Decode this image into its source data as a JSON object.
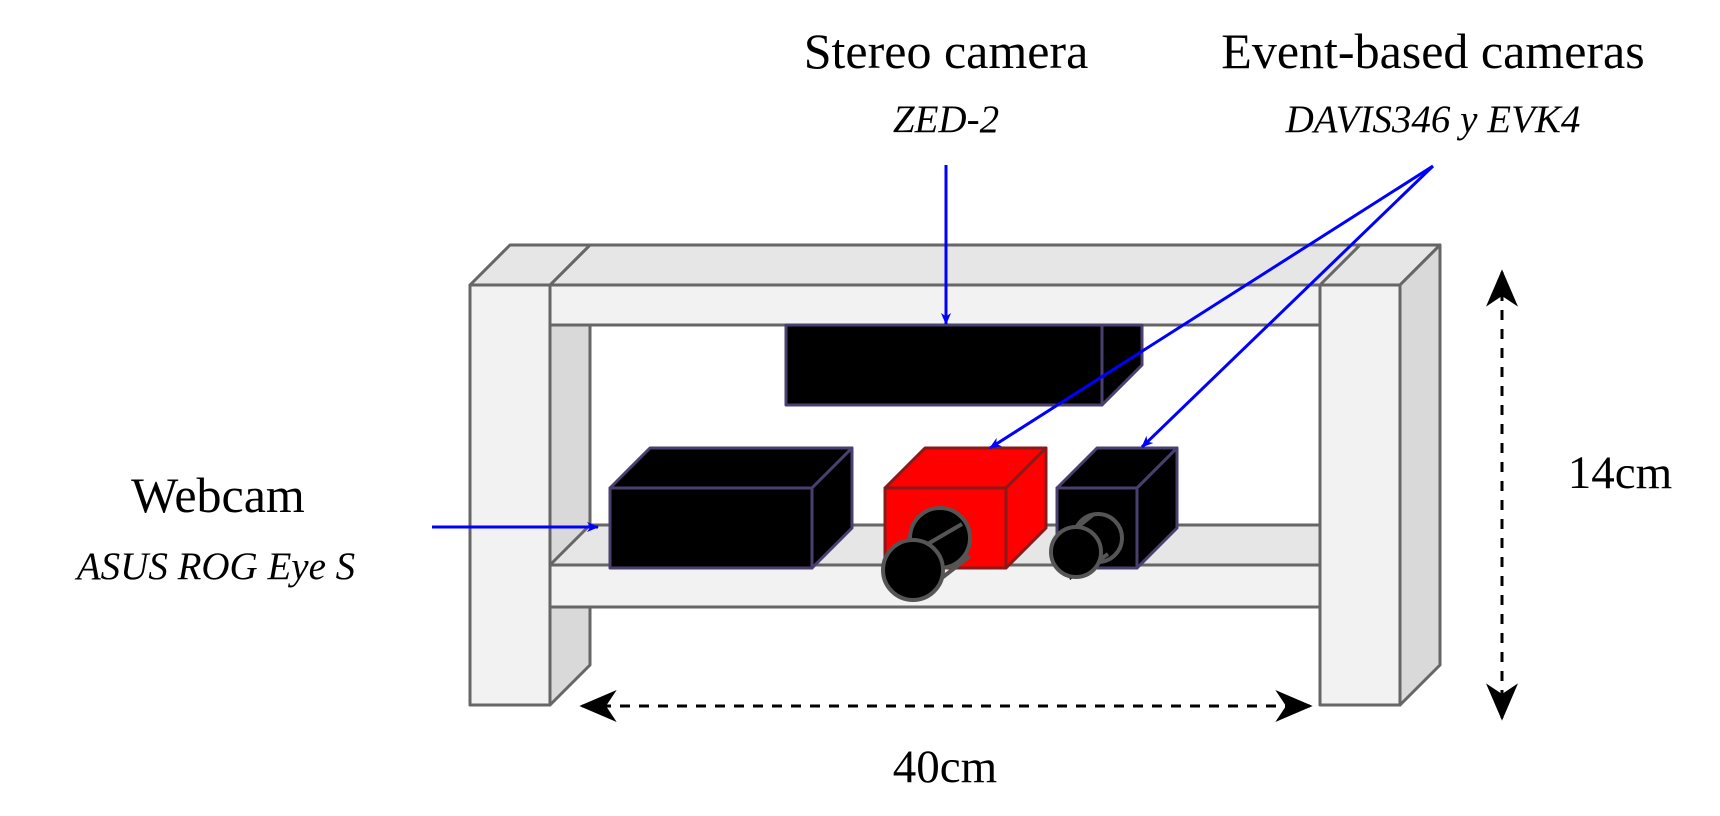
{
  "labels": {
    "stereo": {
      "title": "Stereo camera",
      "model": "ZED-2"
    },
    "event": {
      "title": "Event-based cameras",
      "model": "DAVIS346 y EVK4"
    },
    "webcam": {
      "title": "Webcam",
      "model": "ASUS ROG Eye S"
    }
  },
  "dimensions": {
    "height": "14cm",
    "width": "40cm"
  },
  "colors": {
    "arrow": "#0000ff",
    "rig_face": "#f2f2f2",
    "rig_top": "#e6e6e6",
    "rig_side": "#d9d9d9",
    "rig_edge": "#666666",
    "camera_dark": "#000000",
    "camera_edge": "#4a4070",
    "camera_red": "#ff0000"
  }
}
